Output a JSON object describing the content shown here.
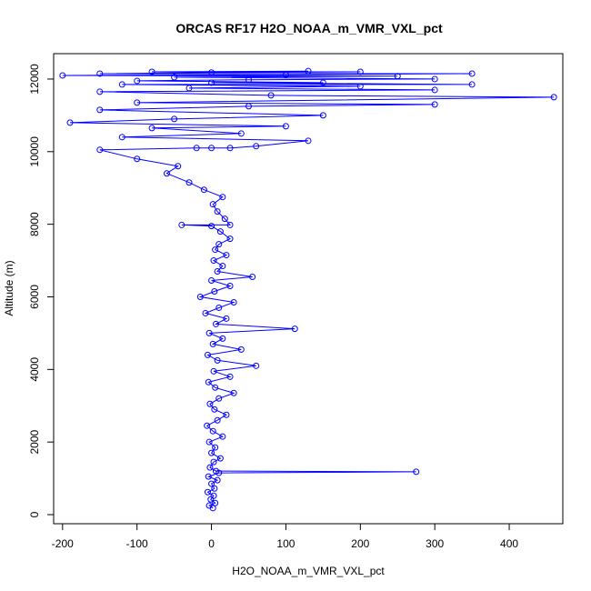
{
  "chart_data": {
    "type": "scatter",
    "title": "ORCAS RF17 H2O_NOAA_m_VMR_VXL_pct",
    "xlabel": "H2O_NOAA_m_VMR_VXL_pct",
    "ylabel": "Altitude (m)",
    "xlim": [
      -212,
      472
    ],
    "ylim": [
      -250,
      12700
    ],
    "x_ticks": [
      -200,
      -100,
      0,
      100,
      200,
      300,
      400
    ],
    "y_ticks": [
      0,
      2000,
      4000,
      6000,
      8000,
      10000,
      12000
    ],
    "grid": false,
    "legend": "none",
    "series": [
      {
        "color": "#0000ff",
        "style": "points-and-lines",
        "marker": "open-circle",
        "points": [
          [
            2,
            180
          ],
          [
            -3,
            250
          ],
          [
            5,
            320
          ],
          [
            -1,
            420
          ],
          [
            3,
            520
          ],
          [
            -5,
            620
          ],
          [
            4,
            720
          ],
          [
            0,
            850
          ],
          [
            8,
            950
          ],
          [
            -4,
            1050
          ],
          [
            10,
            1150
          ],
          [
            275,
            1180
          ],
          [
            6,
            1200
          ],
          [
            -2,
            1300
          ],
          [
            3,
            1450
          ],
          [
            12,
            1550
          ],
          [
            0,
            1700
          ],
          [
            5,
            1850
          ],
          [
            -3,
            2000
          ],
          [
            15,
            2150
          ],
          [
            2,
            2300
          ],
          [
            -6,
            2450
          ],
          [
            8,
            2600
          ],
          [
            20,
            2750
          ],
          [
            4,
            2900
          ],
          [
            -2,
            3050
          ],
          [
            10,
            3200
          ],
          [
            30,
            3350
          ],
          [
            5,
            3500
          ],
          [
            -4,
            3650
          ],
          [
            25,
            3800
          ],
          [
            3,
            3950
          ],
          [
            60,
            4100
          ],
          [
            8,
            4250
          ],
          [
            -5,
            4400
          ],
          [
            40,
            4550
          ],
          [
            2,
            4700
          ],
          [
            15,
            4850
          ],
          [
            -3,
            5000
          ],
          [
            112,
            5120
          ],
          [
            6,
            5250
          ],
          [
            20,
            5400
          ],
          [
            -8,
            5550
          ],
          [
            10,
            5700
          ],
          [
            30,
            5850
          ],
          [
            -15,
            6000
          ],
          [
            4,
            6150
          ],
          [
            25,
            6300
          ],
          [
            0,
            6450
          ],
          [
            55,
            6550
          ],
          [
            8,
            6700
          ],
          [
            15,
            6850
          ],
          [
            3,
            7000
          ],
          [
            20,
            7150
          ],
          [
            5,
            7300
          ],
          [
            10,
            7450
          ],
          [
            25,
            7600
          ],
          [
            12,
            7800
          ],
          [
            -40,
            7980
          ],
          [
            25,
            7980
          ],
          [
            0,
            7950
          ],
          [
            18,
            8150
          ],
          [
            8,
            8350
          ],
          [
            2,
            8550
          ],
          [
            15,
            8750
          ],
          [
            -10,
            8950
          ],
          [
            -30,
            9150
          ],
          [
            -60,
            9400
          ],
          [
            -45,
            9600
          ],
          [
            -100,
            9800
          ],
          [
            -150,
            10050
          ],
          [
            -20,
            10100
          ],
          [
            0,
            10100
          ],
          [
            25,
            10100
          ],
          [
            60,
            10150
          ],
          [
            130,
            10300
          ],
          [
            -120,
            10400
          ],
          [
            40,
            10500
          ],
          [
            -80,
            10650
          ],
          [
            100,
            10700
          ],
          [
            -190,
            10800
          ],
          [
            -50,
            10900
          ],
          [
            150,
            11000
          ],
          [
            -150,
            11150
          ],
          [
            50,
            11250
          ],
          [
            300,
            11300
          ],
          [
            -100,
            11350
          ],
          [
            460,
            11500
          ],
          [
            80,
            11550
          ],
          [
            -150,
            11650
          ],
          [
            300,
            11700
          ],
          [
            -30,
            11750
          ],
          [
            200,
            11800
          ],
          [
            -120,
            11850
          ],
          [
            350,
            11850
          ],
          [
            0,
            11900
          ],
          [
            150,
            11900
          ],
          [
            -100,
            11950
          ],
          [
            50,
            11980
          ],
          [
            300,
            12000
          ],
          [
            -50,
            12050
          ],
          [
            250,
            12080
          ],
          [
            -200,
            12100
          ],
          [
            100,
            12120
          ],
          [
            350,
            12150
          ],
          [
            -150,
            12150
          ],
          [
            0,
            12180
          ],
          [
            200,
            12200
          ],
          [
            -80,
            12200
          ],
          [
            130,
            12220
          ]
        ]
      }
    ]
  }
}
